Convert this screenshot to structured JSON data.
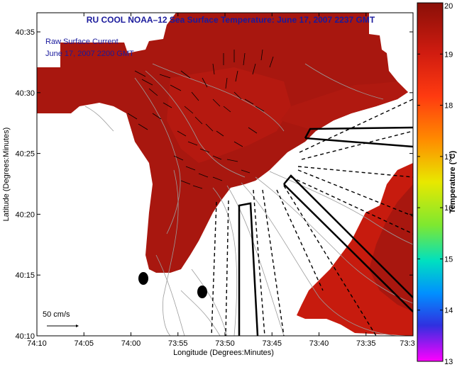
{
  "chart_data": {
    "type": "heatmap",
    "title": "RU COOL   NOAA–12  Sea Surface Temperature:  June 17, 2007 2237 GMT",
    "xlabel": "Longitude (Degrees:Minutes)",
    "ylabel": "Latitude (Degrees:Minutes)",
    "x_ticks": [
      "74:10",
      "74:05",
      "74:00",
      "73:55",
      "73:50",
      "73:45",
      "73:40",
      "73:35",
      "73:3"
    ],
    "y_ticks": [
      "40:35",
      "40:30",
      "40:25",
      "40:20",
      "40:15",
      "40:10"
    ],
    "colorbar": {
      "label": "Temperature (°C)",
      "ticks": [
        "20",
        "19",
        "18",
        "17",
        "16",
        "15",
        "14",
        "13"
      ],
      "range": [
        13,
        20
      ]
    },
    "annotations": [
      "Raw Surface Current",
      "June 17, 2007 2200 GMT"
    ],
    "scale_label": "50 cm/s",
    "grid": false,
    "legend": "none"
  },
  "colors": {
    "warm_water": "#a8170f",
    "mid_water": "#c71b0e",
    "title": "#1a1a9c",
    "land": "#ffffff",
    "contour": "#9c9c9c"
  }
}
